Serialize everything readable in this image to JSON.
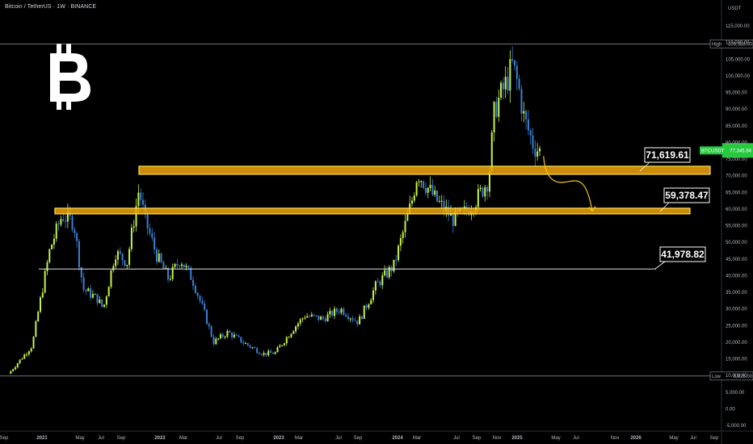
{
  "header": {
    "title": "Bitcoin / TetherUS · 1W · BINANCE",
    "currency": "USDT"
  },
  "icon": "bitcoin-logo-icon",
  "markers": {
    "high_label": "High",
    "high_value": "109,588.00",
    "low_label": "Low",
    "low_value": "9,825.00",
    "price_tag_symbol": "BTCUSDT",
    "price_tag_value": "77,345.84"
  },
  "colors": {
    "up": "#c6f24a",
    "down": "#3a7fd5",
    "zone_fill": "#f0a30a",
    "zone_border": "#ffe04d",
    "arrow": "#f5c518",
    "price_tag": "#27c93f"
  },
  "chart_data": {
    "type": "candlestick",
    "title": "Bitcoin / TetherUS · 1W · BINANCE",
    "y_unit": "USDT",
    "ylim": [
      -5000,
      120000
    ],
    "y_ticks": [
      "115,000.00",
      "110,000.00",
      "105,000.00",
      "100,000.00",
      "95,000.00",
      "90,000.00",
      "85,000.00",
      "80,000.00",
      "75,000.00",
      "70,000.00",
      "65,000.00",
      "60,000.00",
      "55,000.00",
      "50,000.00",
      "45,000.00",
      "40,000.00",
      "35,000.00",
      "30,000.00",
      "25,000.00",
      "20,000.00",
      "15,000.00",
      "10,000.00",
      "5,000.00",
      "0.00",
      "-5,000.00"
    ],
    "x_ticks": [
      "Sep",
      "2021",
      "May",
      "Jul",
      "Sep",
      "2022",
      "Mar",
      "Jul",
      "Sep",
      "2023",
      "Mar",
      "Jul",
      "Sep",
      "2024",
      "Mar",
      "Jul",
      "Sep",
      "Nov",
      "2025",
      "May",
      "Jul",
      "Nov",
      "2026",
      "May",
      "Jul",
      "Sep"
    ],
    "price_path": [
      [
        2020.75,
        10500
      ],
      [
        2020.95,
        19000
      ],
      [
        2021.0,
        29000
      ],
      [
        2021.1,
        48000
      ],
      [
        2021.2,
        58000
      ],
      [
        2021.3,
        56000
      ],
      [
        2021.38,
        36000
      ],
      [
        2021.5,
        33000
      ],
      [
        2021.55,
        30000
      ],
      [
        2021.65,
        47000
      ],
      [
        2021.75,
        44000
      ],
      [
        2021.85,
        66000
      ],
      [
        2021.9,
        57000
      ],
      [
        2022.0,
        46000
      ],
      [
        2022.1,
        39000
      ],
      [
        2022.2,
        45000
      ],
      [
        2022.3,
        39000
      ],
      [
        2022.4,
        29000
      ],
      [
        2022.48,
        20000
      ],
      [
        2022.6,
        23000
      ],
      [
        2022.75,
        19500
      ],
      [
        2022.9,
        16500
      ],
      [
        2023.0,
        16800
      ],
      [
        2023.15,
        24000
      ],
      [
        2023.25,
        28000
      ],
      [
        2023.4,
        27000
      ],
      [
        2023.55,
        30000
      ],
      [
        2023.7,
        26000
      ],
      [
        2023.85,
        37000
      ],
      [
        2024.0,
        43000
      ],
      [
        2024.15,
        62000
      ],
      [
        2024.2,
        71000
      ],
      [
        2024.35,
        63000
      ],
      [
        2024.5,
        57000
      ],
      [
        2024.6,
        59000
      ],
      [
        2024.7,
        63000
      ],
      [
        2024.8,
        69000
      ],
      [
        2024.85,
        90000
      ],
      [
        2024.95,
        98000
      ],
      [
        2025.0,
        103000
      ],
      [
        2025.05,
        97000
      ],
      [
        2025.1,
        87000
      ],
      [
        2025.18,
        79000
      ],
      [
        2025.23,
        77345
      ]
    ],
    "high": 109588.0,
    "low": 9825.0,
    "last_price": 77345.84,
    "levels": [
      {
        "name": "71,619.61",
        "value": 71619.61,
        "type": "zone"
      },
      {
        "name": "59,378.47",
        "value": 59378.47,
        "type": "zone"
      },
      {
        "name": "41,978.82",
        "value": 41978.82,
        "type": "line"
      }
    ],
    "projection": [
      [
        2025.23,
        77345
      ],
      [
        2025.35,
        70000
      ],
      [
        2025.48,
        69000
      ],
      [
        2025.55,
        59378
      ]
    ]
  }
}
